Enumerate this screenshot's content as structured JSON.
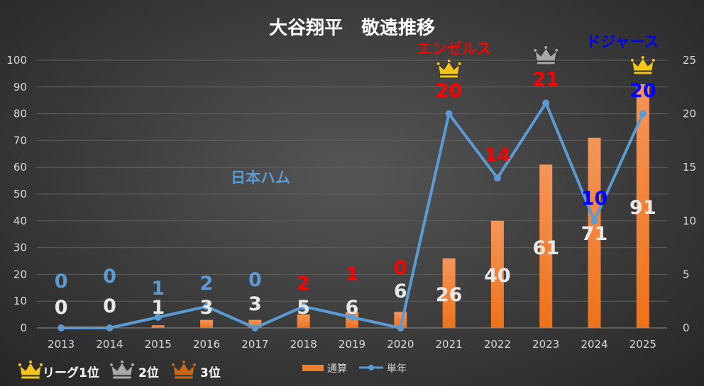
{
  "chart_data": {
    "type": "bar+line",
    "title": "大谷翔平　敬遠推移",
    "categories": [
      "2013",
      "2014",
      "2015",
      "2016",
      "2017",
      "2018",
      "2019",
      "2020",
      "2021",
      "2022",
      "2023",
      "2024",
      "2025"
    ],
    "series": [
      {
        "name": "通算",
        "type": "bar",
        "axis": "left",
        "color": "#f07f2c",
        "values": [
          0,
          0,
          1,
          3,
          3,
          5,
          6,
          6,
          26,
          40,
          61,
          71,
          91
        ]
      },
      {
        "name": "単年",
        "type": "line",
        "axis": "right",
        "color": "#5b9bd5",
        "values": [
          0,
          0,
          1,
          2,
          0,
          2,
          1,
          0,
          20,
          14,
          21,
          10,
          20
        ]
      }
    ],
    "annual_label_colors": [
      "#5b9bd5",
      "#5b9bd5",
      "#5b9bd5",
      "#5b9bd5",
      "#5b9bd5",
      "#ff0000",
      "#ff0000",
      "#ff0000",
      "#ff0000",
      "#ff0000",
      "#ff0000",
      "#0000ff",
      "#0000ff"
    ],
    "crowns": [
      {
        "year": "2021",
        "rank": "1"
      },
      {
        "year": "2023",
        "rank": "2"
      },
      {
        "year": "2025",
        "rank": "1"
      }
    ],
    "y_left": {
      "min": 0,
      "max": 100,
      "ticks": [
        0,
        10,
        20,
        30,
        40,
        50,
        60,
        70,
        80,
        90,
        100
      ]
    },
    "y_right": {
      "min": 0,
      "max": 25,
      "ticks": [
        0,
        5,
        10,
        15,
        20,
        25
      ]
    },
    "annotations": [
      {
        "text": "日本ハム",
        "color": "#5b9bd5"
      },
      {
        "text": "エンゼルス",
        "color": "#ff0000"
      },
      {
        "text": "ドジャース",
        "color": "#0000ff"
      }
    ],
    "legend": {
      "placement": "bottom",
      "items": [
        "通算",
        "単年"
      ]
    },
    "rank_legend": [
      {
        "label": "リーグ1位",
        "color": "#f5c518"
      },
      {
        "label": "2位",
        "color": "#a8a8a8"
      },
      {
        "label": "3位",
        "color": "#c8651b"
      }
    ],
    "grid": true
  }
}
